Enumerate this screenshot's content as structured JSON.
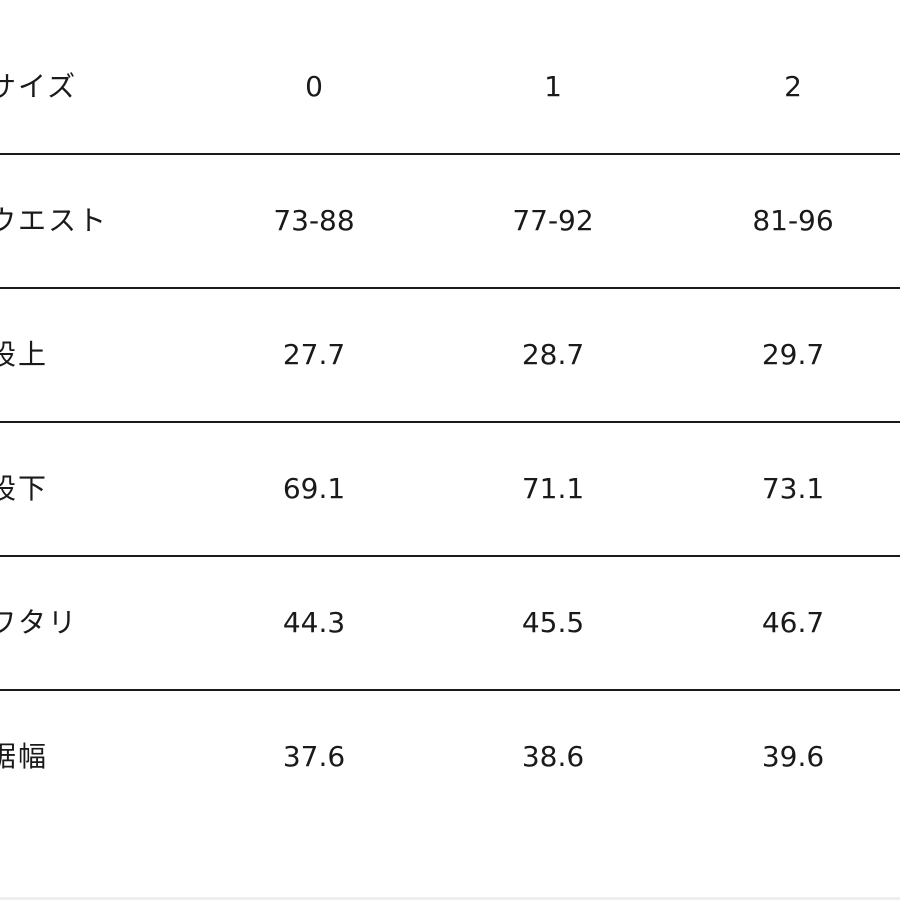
{
  "table": {
    "header": {
      "label": "サイズ",
      "values": [
        "0",
        "1",
        "2"
      ]
    },
    "rows": [
      {
        "label": "ウエスト",
        "values": [
          "73-88",
          "77-92",
          "81-96"
        ]
      },
      {
        "label": "股上",
        "values": [
          "27.7",
          "28.7",
          "29.7"
        ]
      },
      {
        "label": "股下",
        "values": [
          "69.1",
          "71.1",
          "73.1"
        ]
      },
      {
        "label": "ワタリ",
        "values": [
          "44.3",
          "45.5",
          "46.7"
        ]
      },
      {
        "label": "裾幅",
        "values": [
          "37.6",
          "38.6",
          "39.6"
        ]
      }
    ]
  }
}
